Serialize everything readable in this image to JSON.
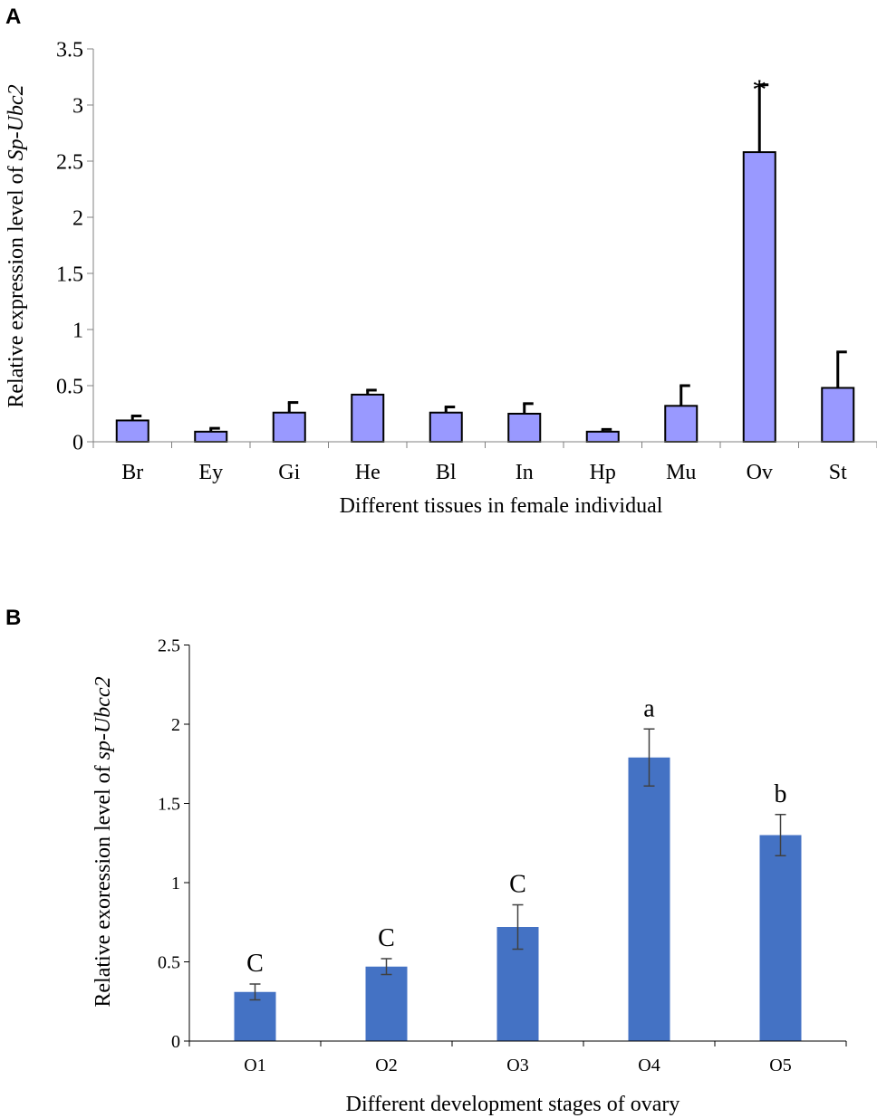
{
  "chart_data": [
    {
      "panel_label": "A",
      "type": "bar",
      "categories": [
        "Br",
        "Ey",
        "Gi",
        "He",
        "Bl",
        "In",
        "Hp",
        "Mu",
        "Ov",
        "St"
      ],
      "values": [
        0.19,
        0.09,
        0.26,
        0.42,
        0.26,
        0.25,
        0.09,
        0.32,
        2.58,
        0.48
      ],
      "errors": [
        0.04,
        0.03,
        0.09,
        0.04,
        0.05,
        0.09,
        0.02,
        0.18,
        0.6,
        0.32
      ],
      "annotations": [
        "",
        "",
        "",
        "",
        "",
        "",
        "",
        "",
        "*",
        ""
      ],
      "ylim": [
        0,
        3.5
      ],
      "yticks": [
        0,
        0.5,
        1,
        1.5,
        2,
        2.5,
        3,
        3.5
      ],
      "ytick_labels": [
        "0",
        "0.5",
        "1",
        "1.5",
        "2",
        "2.5",
        "3",
        "3.5"
      ],
      "xlabel": "Different tissues in female individual",
      "ylabel_prefix": "Relative expression level of ",
      "ylabel_gene": "Sp-Ubc2",
      "bar_color": "#9999ff",
      "edge_color": "#000000"
    },
    {
      "panel_label": "B",
      "type": "bar",
      "categories": [
        "O1",
        "O2",
        "O3",
        "O4",
        "O5"
      ],
      "values": [
        0.31,
        0.47,
        0.72,
        1.79,
        1.3
      ],
      "errors": [
        0.05,
        0.05,
        0.14,
        0.18,
        0.13
      ],
      "annotations": [
        "C",
        "C",
        "C",
        "a",
        "b"
      ],
      "ylim": [
        0,
        2.5
      ],
      "yticks": [
        0,
        0.5,
        1,
        1.5,
        2,
        2.5
      ],
      "ytick_labels": [
        "0",
        "0.5",
        "1",
        "1.5",
        "2",
        "2.5"
      ],
      "xlabel": "Different development stages of ovary",
      "ylabel_prefix": "Relative exoression level of ",
      "ylabel_gene": "sp-Ubcc2",
      "bar_color": "#4472c4",
      "error_color": "#404040"
    }
  ]
}
